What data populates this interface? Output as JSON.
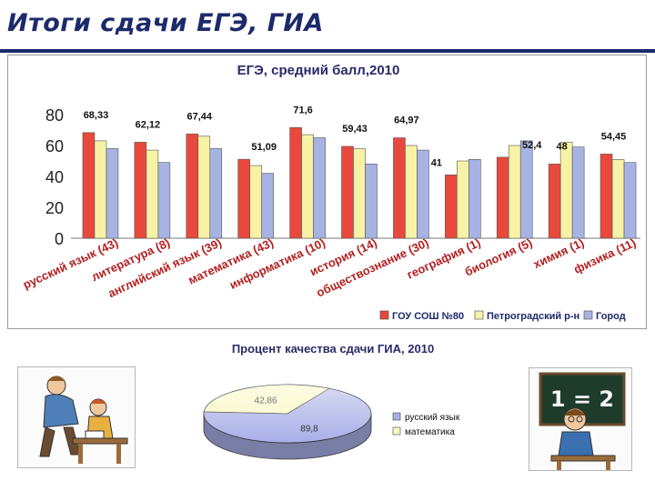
{
  "page": {
    "title": "Итоги сдачи ЕГЭ, ГИА"
  },
  "chart_data": [
    {
      "type": "bar",
      "title": "ЕГЭ, средний балл,2010",
      "ylim": [
        0,
        80
      ],
      "yticks": [
        0,
        20,
        40,
        60,
        80
      ],
      "grid": false,
      "legend_position": "bottom-right",
      "categories": [
        "русский язык (43)",
        "литература (8)",
        "английский язык (39)",
        "математика (43)",
        "информатика (10)",
        "история (14)",
        "обществознание (30)",
        "география (1)",
        "биология (5)",
        "химия (1)",
        "физика (11)"
      ],
      "series": [
        {
          "name": "ГОУ СОШ №80",
          "color": "#e8493c",
          "values": [
            68.33,
            62.12,
            67.44,
            51.09,
            71.6,
            59.43,
            64.97,
            41,
            52.4,
            48,
            54.45
          ]
        },
        {
          "name": "Петроградский р-н",
          "color": "#f7f2a6",
          "values": [
            63,
            57,
            66,
            47,
            67,
            58,
            60,
            50,
            60,
            62,
            51
          ]
        },
        {
          "name": "Город",
          "color": "#a7b3e3",
          "values": [
            58,
            49,
            58,
            42,
            65,
            48,
            57,
            51,
            63,
            59,
            49
          ]
        }
      ],
      "data_labels": [
        "68,33",
        "62,12",
        "67,44",
        "51,09",
        "71,6",
        "59,43",
        "64,97",
        "41",
        "52,4",
        "48",
        "54,45"
      ]
    },
    {
      "type": "pie",
      "title": "Процент качества сдачи ГИА, 2010",
      "slices": [
        {
          "label": "русский язык",
          "value": 89.8,
          "display": "89,8",
          "color": "#a8afe6"
        },
        {
          "label": "математика",
          "value": 42.86,
          "display": "42,86",
          "color": "#fbf8c1"
        }
      ]
    }
  ],
  "clipart": {
    "left_picture": "father-helping-child-homework",
    "right_picture": "boy-at-chalkboard-math",
    "chalkboard_text": "1 = 2"
  }
}
